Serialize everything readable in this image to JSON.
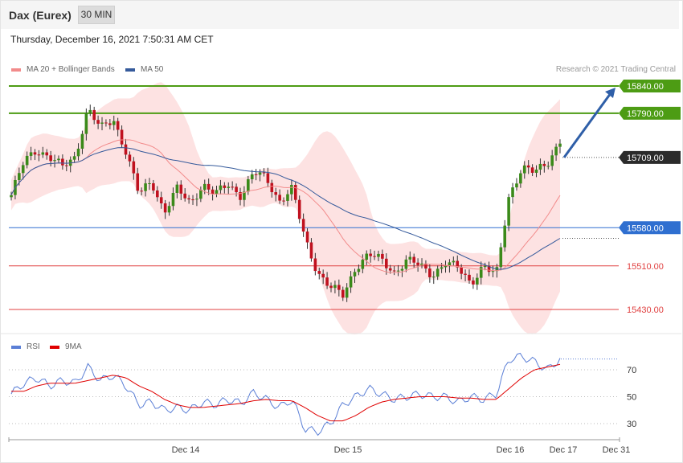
{
  "header": {
    "instrument": "Dax (Eurex)",
    "timeframe": "30 MIN",
    "timestamp": "Thursday, December 16, 2021 7:50:31 AM CET"
  },
  "legend": {
    "ma20": {
      "label": "MA 20 + Bollinger Bands",
      "color": "#f28b8b"
    },
    "ma50": {
      "label": "MA 50",
      "color": "#355a9b"
    }
  },
  "credit": "Research © 2021 Trading Central",
  "rsi_legend": {
    "rsi": {
      "label": "RSI",
      "color": "#5b7fd6"
    },
    "ma9": {
      "label": "9MA",
      "color": "#e00000"
    }
  },
  "chart_data": [
    {
      "type": "candlestick",
      "ylim": [
        15380,
        15900
      ],
      "x_tick_labels": [
        "Dec 14",
        "Dec 15",
        "Dec 16",
        "Dec 17",
        "Dec 31"
      ],
      "levels": [
        {
          "value": 15840.0,
          "label": "15840.00",
          "kind": "resistance",
          "color": "#4d9c14"
        },
        {
          "value": 15790.0,
          "label": "15790.00",
          "kind": "resistance",
          "color": "#4d9c14"
        },
        {
          "value": 15709.0,
          "label": "15709.00",
          "kind": "last-price",
          "color": "#2b2b2b"
        },
        {
          "value": 15580.0,
          "label": "15580.00",
          "kind": "pivot",
          "color": "#2f6fd0"
        },
        {
          "value": 15510.0,
          "label": "15510.00",
          "kind": "support",
          "color": "#e04040"
        },
        {
          "value": 15430.0,
          "label": "15430.00",
          "kind": "support",
          "color": "#e04040"
        }
      ],
      "forecast_arrow": {
        "from": 15709,
        "to": 15840,
        "color": "#2f5fa8"
      },
      "price_path": [
        15640,
        15700,
        15725,
        15710,
        15690,
        15710,
        15800,
        15760,
        15780,
        15720,
        15640,
        15665,
        15610,
        15650,
        15625,
        15660,
        15640,
        15660,
        15640,
        15680,
        15670,
        15630,
        15650,
        15560,
        15500,
        15470,
        15455,
        15510,
        15530,
        15520,
        15500,
        15520,
        15510,
        15495,
        15515,
        15505,
        15480,
        15510,
        15490,
        15640,
        15690,
        15680,
        15700,
        15740
      ]
    },
    {
      "type": "line",
      "series": [
        {
          "name": "RSI",
          "values": [
            52,
            60,
            64,
            58,
            62,
            60,
            72,
            62,
            66,
            58,
            44,
            46,
            40,
            42,
            40,
            46,
            44,
            48,
            45,
            53,
            48,
            42,
            48,
            26,
            24,
            30,
            44,
            50,
            56,
            52,
            48,
            50,
            52,
            50,
            50,
            46,
            50,
            48,
            52,
            78,
            80,
            76,
            70,
            78
          ]
        },
        {
          "name": "9MA",
          "values": [
            54,
            54,
            58,
            60,
            60,
            60,
            62,
            64,
            66,
            64,
            58,
            54,
            48,
            44,
            42,
            42,
            43,
            44,
            45,
            47,
            48,
            47,
            47,
            42,
            36,
            32,
            32,
            36,
            42,
            46,
            48,
            49,
            50,
            50,
            50,
            49,
            49,
            48,
            48,
            56,
            64,
            70,
            72,
            74
          ]
        }
      ],
      "ylim": [
        20,
        85
      ],
      "y_tick_labels": [
        "70",
        "50",
        "30"
      ]
    }
  ]
}
